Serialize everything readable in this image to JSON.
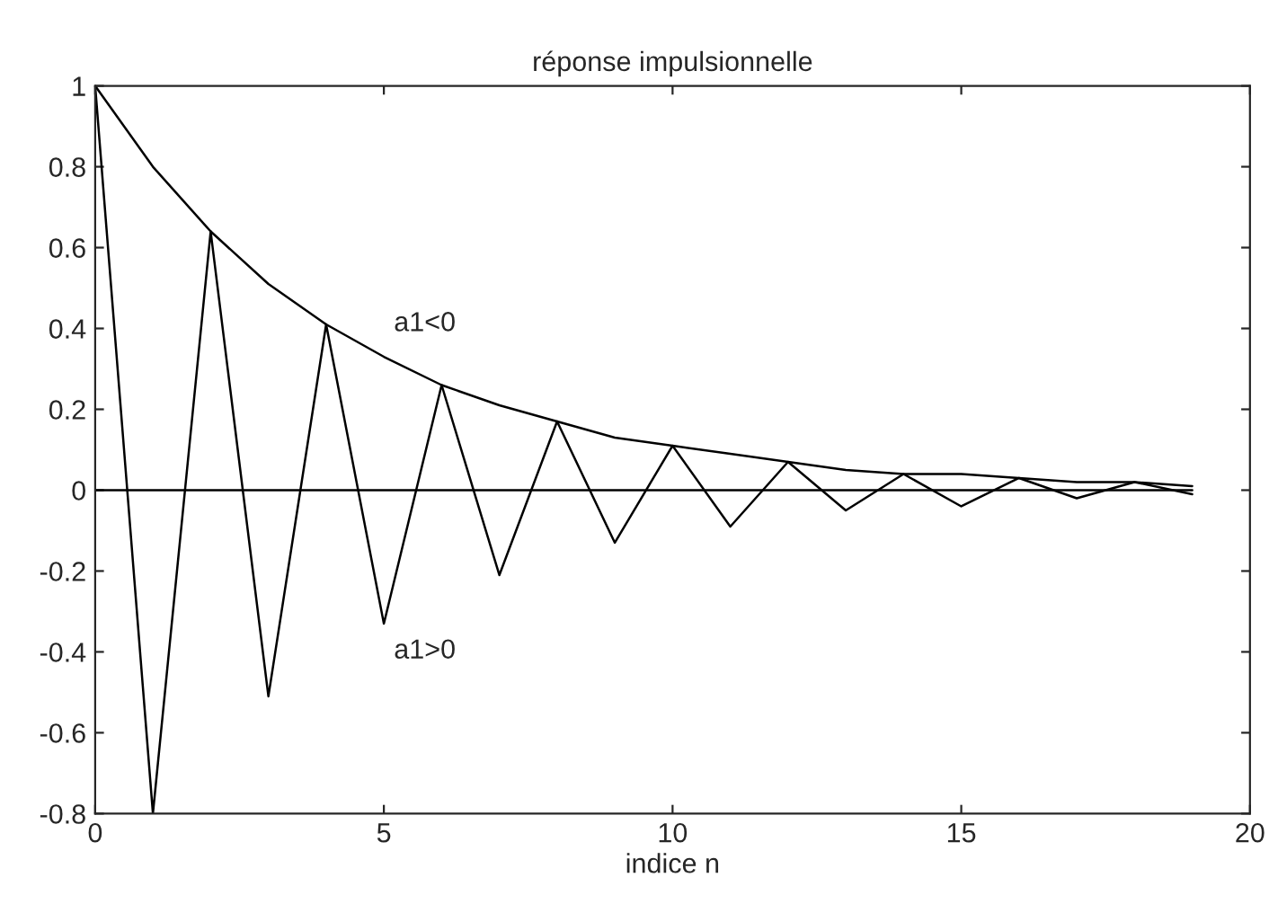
{
  "chart_data": {
    "type": "line",
    "title": "réponse impulsionnelle",
    "xlabel": "indice n",
    "x": [
      0,
      1,
      2,
      3,
      4,
      5,
      6,
      7,
      8,
      9,
      10,
      11,
      12,
      13,
      14,
      15,
      16,
      17,
      18,
      19
    ],
    "series": [
      {
        "name": "a1<0",
        "color": "#000000",
        "values": [
          1,
          0.8,
          0.64,
          0.51,
          0.41,
          0.33,
          0.26,
          0.21,
          0.17,
          0.13,
          0.11,
          0.09,
          0.07,
          0.05,
          0.04,
          0.04,
          0.03,
          0.02,
          0.02,
          0.01
        ]
      },
      {
        "name": "a1>0",
        "color": "#000000",
        "values": [
          1,
          -0.8,
          0.64,
          -0.51,
          0.41,
          -0.33,
          0.26,
          -0.21,
          0.17,
          -0.13,
          0.11,
          -0.09,
          0.07,
          -0.05,
          0.04,
          -0.04,
          0.03,
          -0.02,
          0.02,
          -0.01
        ]
      },
      {
        "color": "#000000",
        "values": [
          0,
          0,
          0,
          0,
          0,
          0,
          0,
          0,
          0,
          0,
          0,
          0,
          0,
          0,
          0,
          0,
          0,
          0,
          0,
          0
        ]
      }
    ],
    "xlim": [
      0,
      20
    ],
    "xticks": [
      0,
      5,
      10,
      15,
      20
    ],
    "ylim": [
      -0.8,
      1
    ],
    "yticks": [
      -0.8,
      -0.6,
      -0.4,
      -0.2,
      0,
      0.2,
      0.4,
      0.6,
      0.8,
      1
    ],
    "grid": false,
    "marker": "none",
    "line_style": "solid"
  }
}
